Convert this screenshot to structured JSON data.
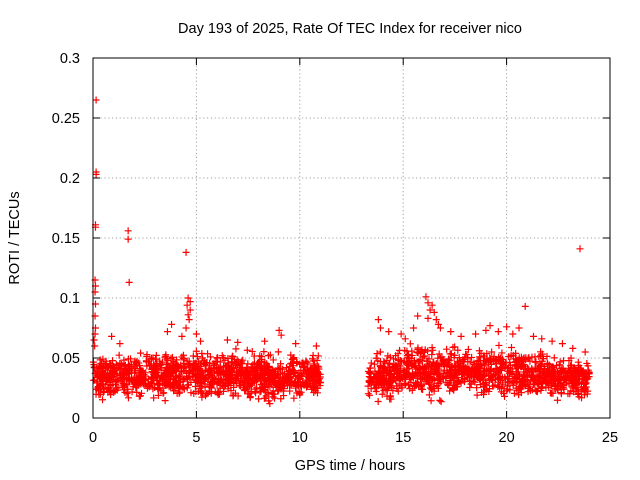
{
  "chart_data": {
    "type": "scatter",
    "title": "Day 193 of 2025, Rate Of TEC Index for receiver nico",
    "xlabel": "GPS time / hours",
    "ylabel": "ROTI / TECUs",
    "xlim": [
      0,
      25
    ],
    "ylim": [
      0,
      0.3
    ],
    "grid": true,
    "x_ticks": [
      0,
      5,
      10,
      15,
      20,
      25
    ],
    "y_ticks": [
      0,
      0.05,
      0.1,
      0.15,
      0.2,
      0.25,
      0.3
    ],
    "x_tick_labels": [
      "0",
      "5",
      "10",
      "15",
      "20",
      "25"
    ],
    "y_tick_labels": [
      "0",
      "0.05",
      "0.1",
      "0.15",
      "0.2",
      "0.25",
      "0.3"
    ],
    "marker": "+",
    "color": "#ff0000",
    "data_gap_hours": [
      11.1,
      13.2
    ],
    "band": [
      {
        "x": 0.0,
        "lo": 0.012,
        "hi": 0.055
      },
      {
        "x": 1.0,
        "lo": 0.012,
        "hi": 0.055
      },
      {
        "x": 2.0,
        "lo": 0.012,
        "hi": 0.058
      },
      {
        "x": 3.0,
        "lo": 0.012,
        "hi": 0.058
      },
      {
        "x": 4.0,
        "lo": 0.012,
        "hi": 0.062
      },
      {
        "x": 5.0,
        "lo": 0.012,
        "hi": 0.062
      },
      {
        "x": 6.0,
        "lo": 0.012,
        "hi": 0.06
      },
      {
        "x": 7.0,
        "lo": 0.012,
        "hi": 0.06
      },
      {
        "x": 8.0,
        "lo": 0.01,
        "hi": 0.058
      },
      {
        "x": 9.0,
        "lo": 0.01,
        "hi": 0.06
      },
      {
        "x": 10.0,
        "lo": 0.012,
        "hi": 0.058
      },
      {
        "x": 11.0,
        "lo": 0.012,
        "hi": 0.058
      },
      {
        "x": 13.3,
        "lo": 0.012,
        "hi": 0.055
      },
      {
        "x": 14.0,
        "lo": 0.012,
        "hi": 0.06
      },
      {
        "x": 15.0,
        "lo": 0.012,
        "hi": 0.065
      },
      {
        "x": 16.0,
        "lo": 0.012,
        "hi": 0.07
      },
      {
        "x": 17.0,
        "lo": 0.012,
        "hi": 0.065
      },
      {
        "x": 18.0,
        "lo": 0.012,
        "hi": 0.065
      },
      {
        "x": 19.0,
        "lo": 0.012,
        "hi": 0.065
      },
      {
        "x": 20.0,
        "lo": 0.012,
        "hi": 0.065
      },
      {
        "x": 21.0,
        "lo": 0.012,
        "hi": 0.062
      },
      {
        "x": 22.0,
        "lo": 0.012,
        "hi": 0.058
      },
      {
        "x": 23.0,
        "lo": 0.012,
        "hi": 0.055
      },
      {
        "x": 24.0,
        "lo": 0.012,
        "hi": 0.05
      }
    ],
    "series": [
      {
        "name": "ROTI",
        "points": [
          [
            0.15,
            0.265
          ],
          [
            0.15,
            0.205
          ],
          [
            0.15,
            0.203
          ],
          [
            0.12,
            0.161
          ],
          [
            0.12,
            0.159
          ],
          [
            0.1,
            0.115
          ],
          [
            0.12,
            0.11
          ],
          [
            0.1,
            0.105
          ],
          [
            0.12,
            0.095
          ],
          [
            0.1,
            0.085
          ],
          [
            0.12,
            0.075
          ],
          [
            0.1,
            0.07
          ],
          [
            0.05,
            0.065
          ],
          [
            0.08,
            0.06
          ],
          [
            0.9,
            0.068
          ],
          [
            1.3,
            0.062
          ],
          [
            1.7,
            0.156
          ],
          [
            1.7,
            0.149
          ],
          [
            1.75,
            0.113
          ],
          [
            4.5,
            0.138
          ],
          [
            4.6,
            0.1
          ],
          [
            4.7,
            0.097
          ],
          [
            4.55,
            0.094
          ],
          [
            4.7,
            0.09
          ],
          [
            4.6,
            0.086
          ],
          [
            4.65,
            0.082
          ],
          [
            4.5,
            0.075
          ],
          [
            3.8,
            0.078
          ],
          [
            3.6,
            0.072
          ],
          [
            4.3,
            0.068
          ],
          [
            5.0,
            0.07
          ],
          [
            5.2,
            0.064
          ],
          [
            6.5,
            0.065
          ],
          [
            7.0,
            0.063
          ],
          [
            8.3,
            0.064
          ],
          [
            9.0,
            0.073
          ],
          [
            9.1,
            0.069
          ],
          [
            9.8,
            0.062
          ],
          [
            10.8,
            0.06
          ],
          [
            13.8,
            0.082
          ],
          [
            13.9,
            0.075
          ],
          [
            14.3,
            0.072
          ],
          [
            14.9,
            0.07
          ],
          [
            15.1,
            0.066
          ],
          [
            15.7,
            0.085
          ],
          [
            15.5,
            0.075
          ],
          [
            16.1,
            0.101
          ],
          [
            16.2,
            0.096
          ],
          [
            16.3,
            0.09
          ],
          [
            16.4,
            0.094
          ],
          [
            16.5,
            0.088
          ],
          [
            16.6,
            0.082
          ],
          [
            16.7,
            0.078
          ],
          [
            16.2,
            0.083
          ],
          [
            16.8,
            0.075
          ],
          [
            17.3,
            0.072
          ],
          [
            17.8,
            0.068
          ],
          [
            18.5,
            0.07
          ],
          [
            19.0,
            0.073
          ],
          [
            19.2,
            0.077
          ],
          [
            19.6,
            0.072
          ],
          [
            20.0,
            0.076
          ],
          [
            20.3,
            0.07
          ],
          [
            20.6,
            0.075
          ],
          [
            20.9,
            0.093
          ],
          [
            21.3,
            0.068
          ],
          [
            21.7,
            0.066
          ],
          [
            22.2,
            0.064
          ],
          [
            22.7,
            0.062
          ],
          [
            23.2,
            0.058
          ],
          [
            23.55,
            0.141
          ],
          [
            23.8,
            0.055
          ]
        ]
      }
    ]
  }
}
